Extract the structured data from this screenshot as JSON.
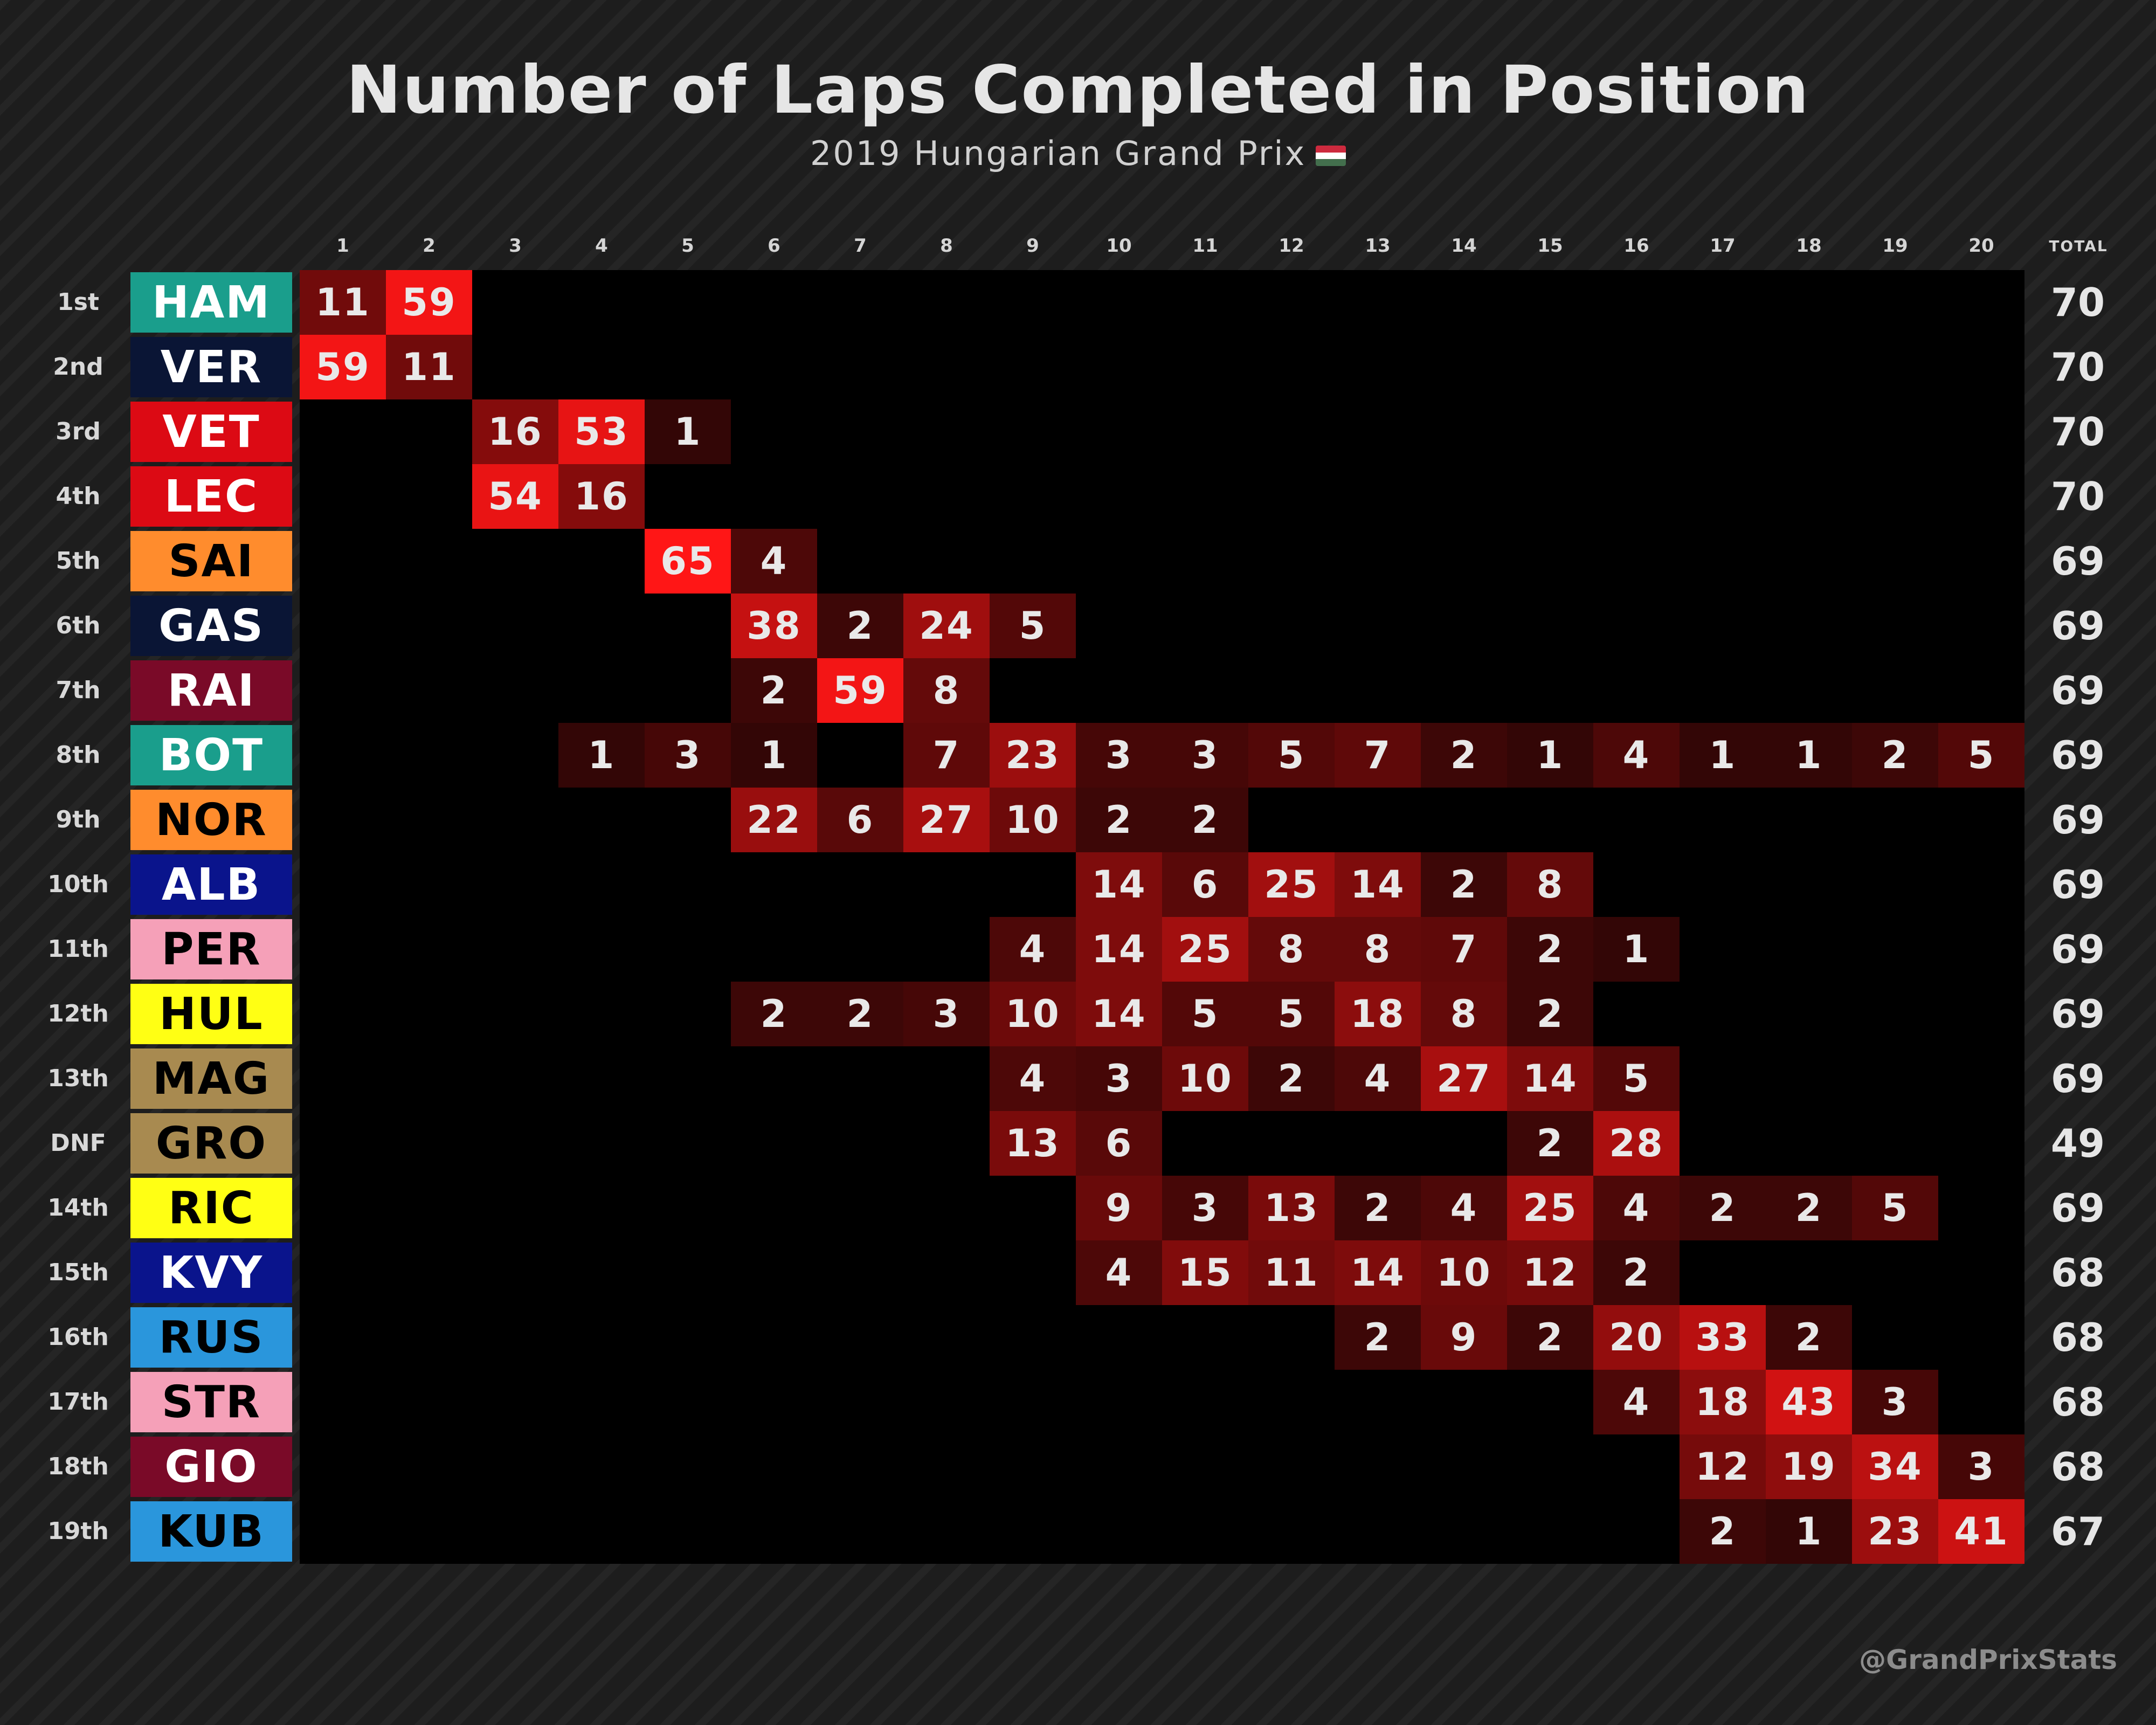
{
  "title": "Number of Laps Completed in Position",
  "subtitle": "2019 Hungarian Grand Prix",
  "flag_icon": "hungary-flag-icon",
  "flag_colors": [
    "#cd2a3e",
    "#ffffff",
    "#436f4d"
  ],
  "total_header": "TOTAL",
  "watermark": "@GrandPrixStats",
  "colors": {
    "cell_max": "#ff1a1a",
    "cell_min": "#000000"
  },
  "chart_data": {
    "type": "heatmap",
    "x_categories": [
      "1",
      "2",
      "3",
      "4",
      "5",
      "6",
      "7",
      "8",
      "9",
      "10",
      "11",
      "12",
      "13",
      "14",
      "15",
      "16",
      "17",
      "18",
      "19",
      "20"
    ],
    "rows": [
      {
        "position": "1st",
        "driver": "HAM",
        "bg": "#1a9e8c",
        "fg": "#ffffff",
        "total": "70",
        "cells": {
          "1": 11,
          "2": 59
        }
      },
      {
        "position": "2nd",
        "driver": "VER",
        "bg": "#0a1535",
        "fg": "#ffffff",
        "total": "70",
        "cells": {
          "1": 59,
          "2": 11
        }
      },
      {
        "position": "3rd",
        "driver": "VET",
        "bg": "#dc0a14",
        "fg": "#ffffff",
        "total": "70",
        "cells": {
          "3": 16,
          "4": 53,
          "5": 1
        }
      },
      {
        "position": "4th",
        "driver": "LEC",
        "bg": "#dc0a14",
        "fg": "#ffffff",
        "total": "70",
        "cells": {
          "3": 54,
          "4": 16
        }
      },
      {
        "position": "5th",
        "driver": "SAI",
        "bg": "#ff8c2d",
        "fg": "#000000",
        "total": "69",
        "cells": {
          "5": 65,
          "6": 4
        }
      },
      {
        "position": "6th",
        "driver": "GAS",
        "bg": "#0a1535",
        "fg": "#ffffff",
        "total": "69",
        "cells": {
          "6": 38,
          "7": 2,
          "8": 24,
          "9": 5
        }
      },
      {
        "position": "7th",
        "driver": "RAI",
        "bg": "#7a0a28",
        "fg": "#ffffff",
        "total": "69",
        "cells": {
          "6": 2,
          "7": 59,
          "8": 8
        }
      },
      {
        "position": "8th",
        "driver": "BOT",
        "bg": "#1a9e8c",
        "fg": "#ffffff",
        "total": "69",
        "cells": {
          "4": 1,
          "5": 3,
          "6": 1,
          "8": 7,
          "9": 23,
          "10": 3,
          "11": 3,
          "12": 5,
          "13": 7,
          "14": 2,
          "15": 1,
          "16": 4,
          "17": 1,
          "18": 1,
          "19": 2,
          "20": 5
        }
      },
      {
        "position": "9th",
        "driver": "NOR",
        "bg": "#ff8c2d",
        "fg": "#000000",
        "total": "69",
        "cells": {
          "6": 22,
          "7": 6,
          "8": 27,
          "9": 10,
          "10": 2,
          "11": 2
        }
      },
      {
        "position": "10th",
        "driver": "ALB",
        "bg": "#0a148c",
        "fg": "#ffffff",
        "total": "69",
        "cells": {
          "10": 14,
          "11": 6,
          "12": 25,
          "13": 14,
          "14": 2,
          "15": 8
        }
      },
      {
        "position": "11th",
        "driver": "PER",
        "bg": "#f5a0b8",
        "fg": "#000000",
        "total": "69",
        "cells": {
          "9": 4,
          "10": 14,
          "11": 25,
          "12": 8,
          "13": 8,
          "14": 7,
          "15": 2,
          "16": 1
        }
      },
      {
        "position": "12th",
        "driver": "HUL",
        "bg": "#ffff14",
        "fg": "#000000",
        "total": "69",
        "cells": {
          "6": 2,
          "7": 2,
          "8": 3,
          "9": 10,
          "10": 14,
          "11": 5,
          "12": 5,
          "13": 18,
          "14": 8,
          "15": 2
        }
      },
      {
        "position": "13th",
        "driver": "MAG",
        "bg": "#a88a50",
        "fg": "#000000",
        "total": "69",
        "cells": {
          "9": 4,
          "10": 3,
          "11": 10,
          "12": 2,
          "13": 4,
          "14": 27,
          "15": 14,
          "16": 5
        }
      },
      {
        "position": "DNF",
        "driver": "GRO",
        "bg": "#a88a50",
        "fg": "#000000",
        "total": "49",
        "cells": {
          "9": 13,
          "10": 6,
          "15": 2,
          "16": 28
        }
      },
      {
        "position": "14th",
        "driver": "RIC",
        "bg": "#ffff14",
        "fg": "#000000",
        "total": "69",
        "cells": {
          "10": 9,
          "11": 3,
          "12": 13,
          "13": 2,
          "14": 4,
          "15": 25,
          "16": 4,
          "17": 2,
          "18": 2,
          "19": 5
        }
      },
      {
        "position": "15th",
        "driver": "KVY",
        "bg": "#0a148c",
        "fg": "#ffffff",
        "total": "68",
        "cells": {
          "10": 4,
          "11": 15,
          "12": 11,
          "13": 14,
          "14": 10,
          "15": 12,
          "16": 2
        }
      },
      {
        "position": "16th",
        "driver": "RUS",
        "bg": "#2a96dc",
        "fg": "#000000",
        "total": "68",
        "cells": {
          "13": 2,
          "14": 9,
          "15": 2,
          "16": 20,
          "17": 33,
          "18": 2
        }
      },
      {
        "position": "17th",
        "driver": "STR",
        "bg": "#f5a0b8",
        "fg": "#000000",
        "total": "68",
        "cells": {
          "16": 4,
          "17": 18,
          "18": 43,
          "19": 3
        }
      },
      {
        "position": "18th",
        "driver": "GIO",
        "bg": "#7a0a28",
        "fg": "#ffffff",
        "total": "68",
        "cells": {
          "17": 12,
          "18": 19,
          "19": 34,
          "20": 3
        }
      },
      {
        "position": "19th",
        "driver": "KUB",
        "bg": "#2a96dc",
        "fg": "#000000",
        "total": "67",
        "cells": {
          "17": 2,
          "18": 1,
          "19": 23,
          "20": 41
        }
      }
    ]
  }
}
